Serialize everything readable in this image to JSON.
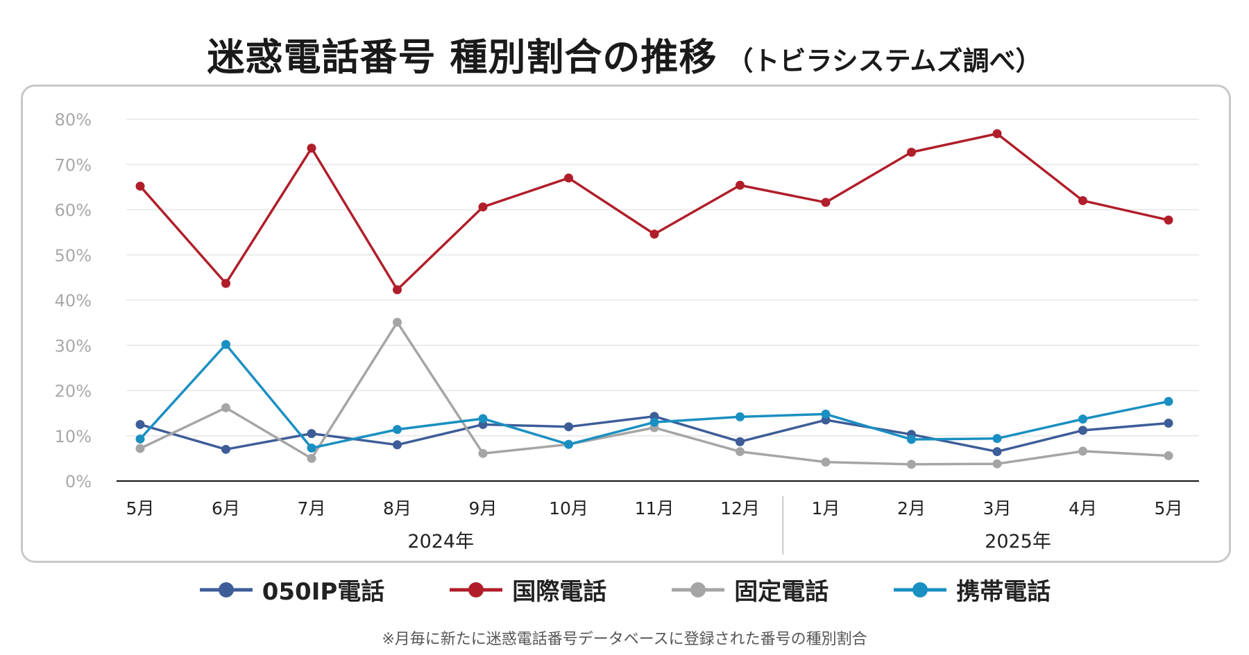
{
  "title": "迷惑電話番号 種別割合の推移",
  "subtitle": "（トビラシステムズ調べ）",
  "footnote": "※月毎に新たに迷惑電話番号データベースに登録された番号の種別割合",
  "chart_data": {
    "type": "line",
    "categories": [
      "5月",
      "6月",
      "7月",
      "8月",
      "9月",
      "10月",
      "11月",
      "12月",
      "1月",
      "2月",
      "3月",
      "4月",
      "5月"
    ],
    "year_groups": [
      {
        "label": "2024年",
        "from": 0,
        "to": 7
      },
      {
        "label": "2025年",
        "from": 8,
        "to": 12
      }
    ],
    "ylim": [
      0,
      80
    ],
    "yticks": [
      0,
      10,
      20,
      30,
      40,
      50,
      60,
      70,
      80
    ],
    "ytick_labels": [
      "0%",
      "10%",
      "20%",
      "30%",
      "40%",
      "50%",
      "60%",
      "70%",
      "80%"
    ],
    "grid": true,
    "legend_position": "bottom",
    "series": [
      {
        "name": "050IP電話",
        "color": "#3d5d98",
        "values": [
          12.5,
          7.0,
          10.5,
          8.0,
          12.5,
          12.0,
          14.3,
          8.7,
          13.5,
          10.3,
          6.5,
          11.2,
          12.8
        ]
      },
      {
        "name": "国際電話",
        "color": "#b01e2a",
        "values": [
          65.2,
          43.7,
          73.6,
          42.3,
          60.6,
          67.0,
          54.6,
          65.4,
          61.6,
          72.7,
          76.8,
          62.0,
          57.7
        ]
      },
      {
        "name": "固定電話",
        "color": "#a5a5a5",
        "values": [
          7.2,
          16.2,
          5.0,
          35.1,
          6.1,
          8.1,
          11.8,
          6.5,
          4.2,
          3.7,
          3.8,
          6.6,
          5.6
        ]
      },
      {
        "name": "携帯電話",
        "color": "#1a8fc1",
        "values": [
          9.3,
          30.2,
          7.3,
          11.4,
          13.8,
          8.1,
          13.0,
          14.2,
          14.8,
          9.2,
          9.4,
          13.7,
          17.6
        ]
      }
    ]
  }
}
